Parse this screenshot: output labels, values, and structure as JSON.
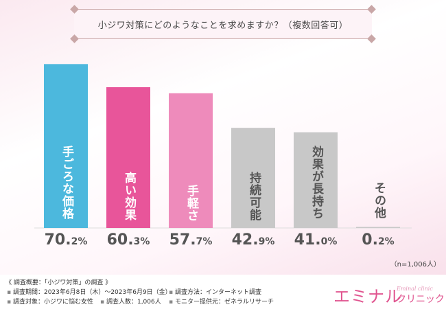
{
  "title": "小ジワ対策にどのようなことを求めますか？（複数回答可）",
  "chart_data": {
    "type": "bar",
    "categories": [
      "手ごろな価格",
      "高い効果",
      "手軽さ",
      "持続可能",
      "効果が長持ち",
      "その他"
    ],
    "values": [
      70.2,
      60.3,
      57.7,
      42.9,
      41.0,
      0.2
    ],
    "value_labels": [
      {
        "big": "70.",
        "small": "2%"
      },
      {
        "big": "60.",
        "small": "3%"
      },
      {
        "big": "57.",
        "small": "7%"
      },
      {
        "big": "42.",
        "small": "9%"
      },
      {
        "big": "41.",
        "small": "0%"
      },
      {
        "big": "0.",
        "small": "2%"
      }
    ],
    "colors": [
      "#4cb8dd",
      "#e8559a",
      "#ee8bbb",
      "#c8c8c8",
      "#c8c8c8",
      "#c8c8c8"
    ],
    "label_colors": [
      "#ffffff",
      "#ffffff",
      "#ffffff",
      "#555555",
      "#555555",
      "#555555"
    ],
    "ylim": [
      0,
      100
    ],
    "xlabel": "",
    "ylabel": ""
  },
  "note": "（n=1,006人）",
  "survey": {
    "summary_title": "《 調査概要：「小ジワ対策」の調査 》",
    "period": "調査期間：2023年6月8日（木）〜2023年6月9日（金）",
    "method": "調査方法：インターネット調査",
    "target": "調査対象：小ジワに悩む女性",
    "count": "調査人数：1,006人",
    "provider": "モニター提供元：ゼネラルリサーチ"
  },
  "logo": {
    "main": "エミナル",
    "sub": "Eminal clinic",
    "kana": "クリニック"
  }
}
